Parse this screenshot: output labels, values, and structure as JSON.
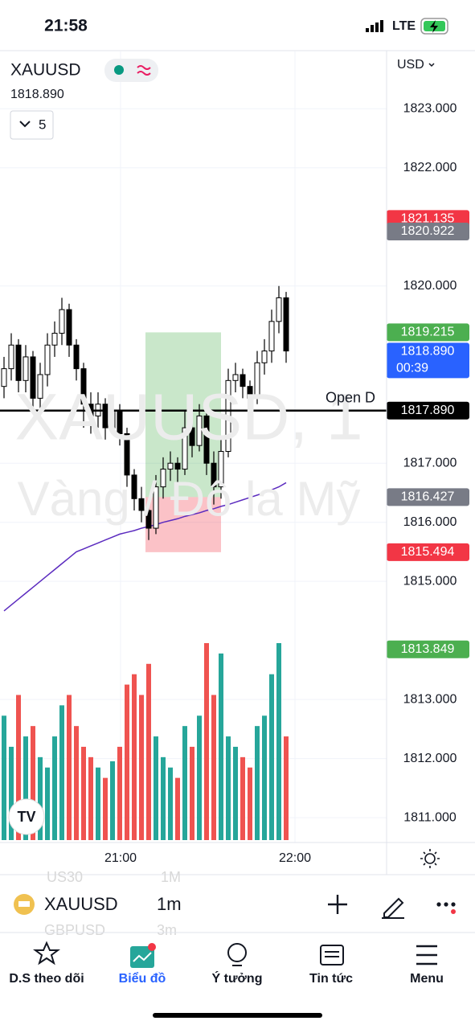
{
  "status": {
    "time": "21:58",
    "network": "LTE"
  },
  "header": {
    "symbol": "XAUUSD",
    "price": "1818.890",
    "indicators": "5",
    "currency": "USD"
  },
  "watermark": {
    "line1": "XAUUSD, 1",
    "line2": "Vàng / Đô la Mỹ"
  },
  "chart_data": {
    "type": "candlestick",
    "ylim": [
      1810.58,
      1823.97
    ],
    "yticks": [
      {
        "value": 1823,
        "label": "1823.000"
      },
      {
        "value": 1822,
        "label": "1822.000"
      },
      {
        "value": 1820,
        "label": "1820.000"
      },
      {
        "value": 1817,
        "label": "1817.000"
      },
      {
        "value": 1816,
        "label": "1816.000"
      },
      {
        "value": 1815,
        "label": "1815.000"
      },
      {
        "value": 1813,
        "label": "1813.000"
      },
      {
        "value": 1812,
        "label": "1812.000"
      },
      {
        "value": 1811,
        "label": "1811.000"
      }
    ],
    "time_labels": [
      "21:00",
      "22:00"
    ],
    "candles": [
      [
        1818.3,
        1818.8,
        1818.1,
        1818.6
      ],
      [
        1818.6,
        1819.2,
        1818.4,
        1819.0
      ],
      [
        1819.0,
        1819.1,
        1818.2,
        1818.4
      ],
      [
        1818.4,
        1819.0,
        1818.2,
        1818.8
      ],
      [
        1818.8,
        1818.9,
        1817.9,
        1818.1
      ],
      [
        1818.1,
        1818.7,
        1817.9,
        1818.5
      ],
      [
        1818.5,
        1819.2,
        1818.3,
        1819.0
      ],
      [
        1819.0,
        1819.4,
        1818.8,
        1819.2
      ],
      [
        1819.2,
        1819.8,
        1819.0,
        1819.6
      ],
      [
        1819.6,
        1819.7,
        1818.8,
        1819.0
      ],
      [
        1819.0,
        1819.1,
        1818.4,
        1818.6
      ],
      [
        1818.6,
        1818.7,
        1817.6,
        1818.0
      ],
      [
        1818.0,
        1818.2,
        1817.5,
        1817.8
      ],
      [
        1817.8,
        1818.2,
        1817.6,
        1818.0
      ],
      [
        1818.0,
        1818.1,
        1817.4,
        1817.6
      ],
      [
        1817.6,
        1818.1,
        1817.5,
        1817.9
      ],
      [
        1817.9,
        1818.0,
        1817.3,
        1817.5
      ],
      [
        1817.5,
        1817.6,
        1816.6,
        1816.8
      ],
      [
        1816.8,
        1816.9,
        1816.2,
        1816.4
      ],
      [
        1816.4,
        1816.6,
        1816.0,
        1816.2
      ],
      [
        1816.2,
        1816.3,
        1815.7,
        1815.9
      ],
      [
        1815.9,
        1816.8,
        1815.8,
        1816.6
      ],
      [
        1816.6,
        1817.1,
        1816.4,
        1816.9
      ],
      [
        1816.9,
        1817.2,
        1816.7,
        1817.0
      ],
      [
        1817.0,
        1817.1,
        1816.6,
        1816.9
      ],
      [
        1816.9,
        1817.9,
        1816.8,
        1817.6
      ],
      [
        1817.6,
        1817.7,
        1817.1,
        1817.3
      ],
      [
        1817.3,
        1818.0,
        1817.2,
        1817.8
      ],
      [
        1817.8,
        1817.9,
        1816.8,
        1817.0
      ],
      [
        1817.0,
        1817.2,
        1816.3,
        1816.6
      ],
      [
        1816.6,
        1817.4,
        1816.4,
        1817.2
      ],
      [
        1817.2,
        1818.6,
        1817.1,
        1818.4
      ],
      [
        1818.4,
        1818.7,
        1818.2,
        1818.5
      ],
      [
        1818.5,
        1818.6,
        1818.1,
        1818.3
      ],
      [
        1818.3,
        1818.4,
        1817.9,
        1818.1
      ],
      [
        1818.1,
        1818.9,
        1818.0,
        1818.7
      ],
      [
        1818.7,
        1819.1,
        1818.5,
        1818.9
      ],
      [
        1818.9,
        1819.6,
        1818.7,
        1819.4
      ],
      [
        1819.4,
        1820.0,
        1819.2,
        1819.8
      ],
      [
        1819.8,
        1819.9,
        1818.7,
        1818.9
      ]
    ],
    "volumes": [
      60,
      45,
      70,
      50,
      55,
      40,
      35,
      50,
      65,
      70,
      55,
      45,
      40,
      35,
      30,
      38,
      45,
      75,
      80,
      70,
      85,
      50,
      40,
      35,
      30,
      55,
      45,
      60,
      95,
      70,
      90,
      50,
      45,
      40,
      35,
      55,
      60,
      80,
      95,
      50
    ],
    "ma": [
      1814.5,
      1814.6,
      1814.7,
      1814.8,
      1814.9,
      1815.0,
      1815.1,
      1815.2,
      1815.3,
      1815.4,
      1815.5,
      1815.55,
      1815.6,
      1815.65,
      1815.7,
      1815.75,
      1815.8,
      1815.83,
      1815.86,
      1815.9,
      1815.93,
      1815.96,
      1816.0,
      1816.03,
      1816.06,
      1816.1,
      1816.13,
      1816.16,
      1816.2,
      1816.23,
      1816.27,
      1816.3,
      1816.34,
      1816.38,
      1816.42,
      1816.46,
      1816.5,
      1816.55,
      1816.6,
      1816.67
    ],
    "ma_color": "#5b2bbf",
    "price_labels": [
      {
        "value": 1821.135,
        "label": "1821.135",
        "color": "#f23645"
      },
      {
        "value": 1820.922,
        "label": "1820.922",
        "color": "#787b86"
      },
      {
        "value": 1819.215,
        "label": "1819.215",
        "color": "#4caf50"
      },
      {
        "value": 1818.89,
        "label": "1818.890",
        "color": "#2962ff",
        "countdown": "00:39"
      },
      {
        "value": 1817.89,
        "label": "1817.890",
        "color": "#000000",
        "line": "Open D"
      },
      {
        "value": 1816.427,
        "label": "1816.427",
        "color": "#787b86"
      },
      {
        "value": 1815.494,
        "label": "1815.494",
        "color": "#f23645"
      },
      {
        "value": 1813.849,
        "label": "1813.849",
        "color": "#4caf50"
      }
    ]
  },
  "toolbar": {
    "symbol": "XAUUSD",
    "interval": "1m",
    "behind": [
      "US30",
      "1M",
      "GBPUSD",
      "3m"
    ]
  },
  "nav": [
    "D.S theo dõi",
    "Biểu đồ",
    "Ý tưởng",
    "Tin tức",
    "Menu"
  ]
}
